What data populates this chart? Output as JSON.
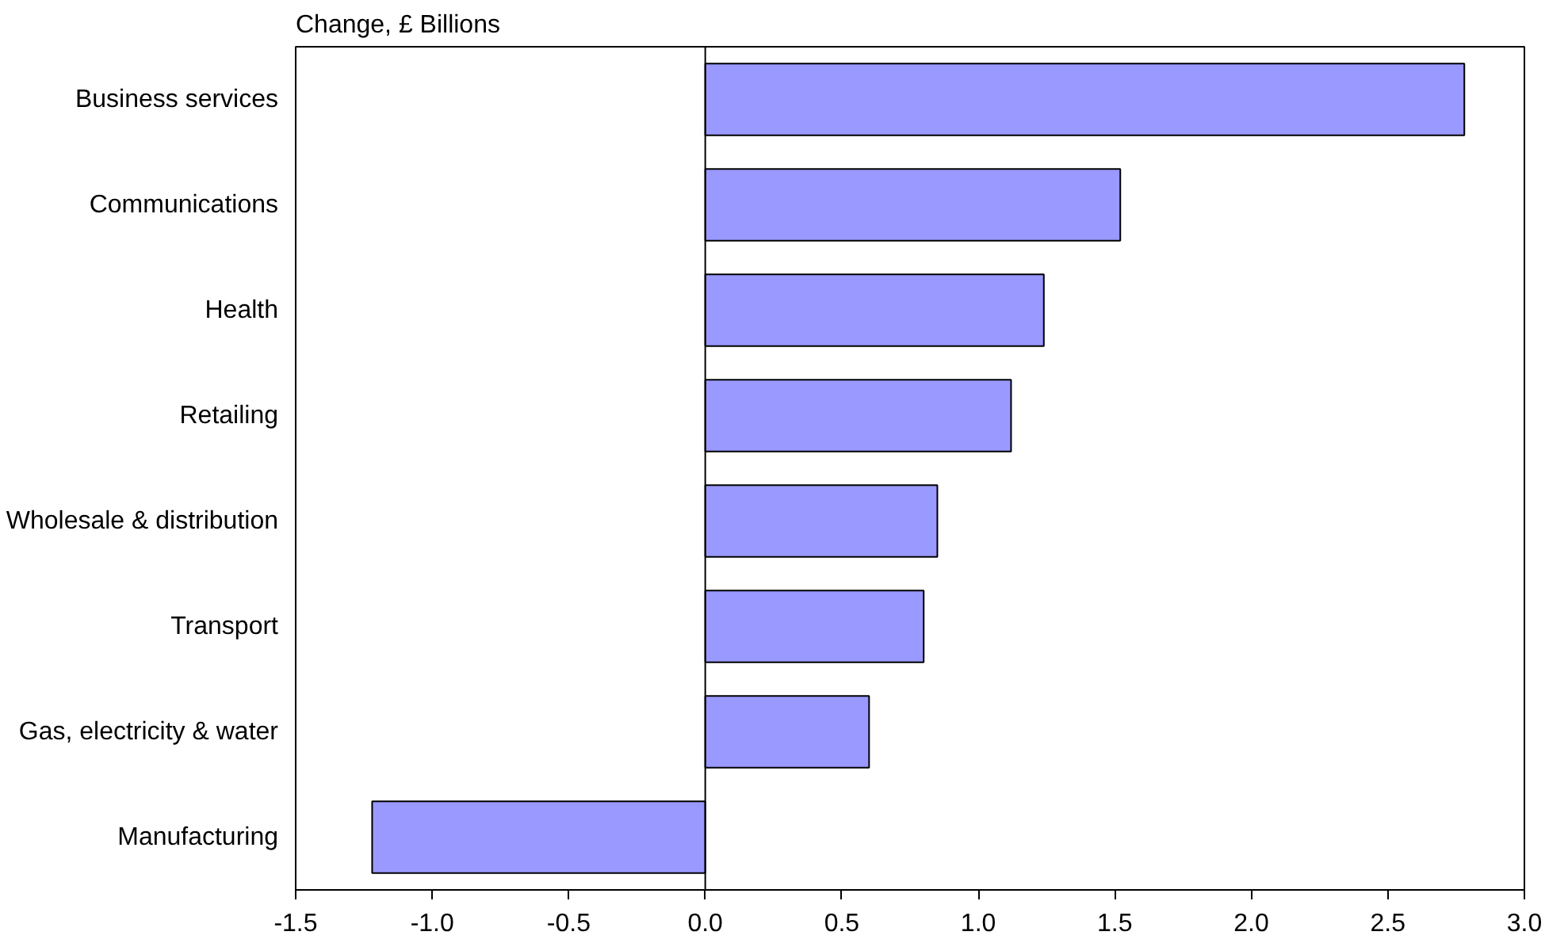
{
  "chart_data": {
    "type": "bar",
    "orientation": "horizontal",
    "title": "Change, £ Billions",
    "categories": [
      "Business services",
      "Communications",
      "Health",
      "Retailing",
      "Wholesale & distribution",
      "Transport",
      "Gas, electricity & water",
      "Manufacturing"
    ],
    "values": [
      2.78,
      1.52,
      1.24,
      1.12,
      0.85,
      0.8,
      0.6,
      -1.22
    ],
    "color": "#9999ff",
    "xlim": [
      -1.5,
      3.0
    ],
    "xticks": [
      {
        "value": -1.5,
        "label": "-1.5"
      },
      {
        "value": -1.0,
        "label": "-1.0"
      },
      {
        "value": -0.5,
        "label": "-0.5"
      },
      {
        "value": 0,
        "label": "0.0"
      },
      {
        "value": 0.5,
        "label": "0.5"
      },
      {
        "value": 1.0,
        "label": "1.0"
      },
      {
        "value": 1.5,
        "label": "1.5"
      },
      {
        "value": 2.0,
        "label": "2.0"
      },
      {
        "value": 2.5,
        "label": "2.5"
      },
      {
        "value": 3.0,
        "label": "3.0"
      }
    ],
    "data_labels": false
  }
}
